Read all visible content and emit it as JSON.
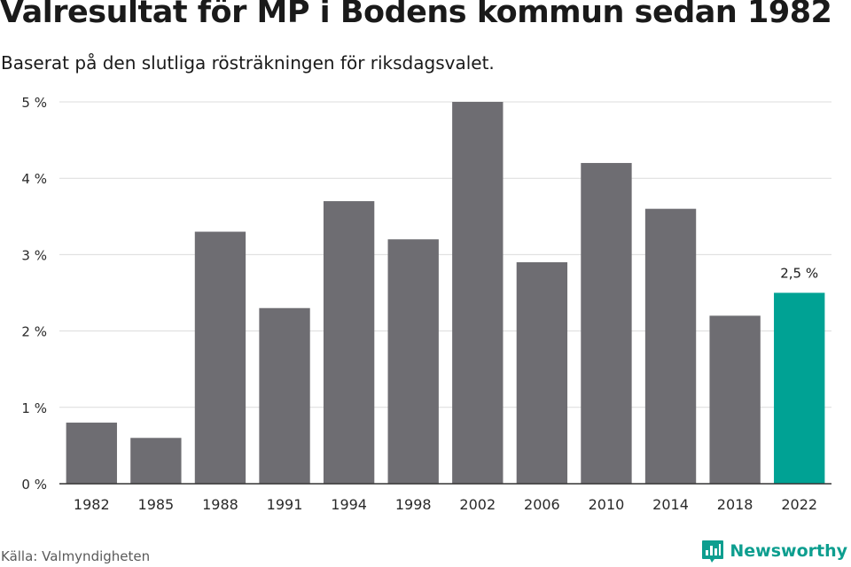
{
  "header": {
    "title": "Valresultat för MP i Bodens kommun sedan 1982",
    "subtitle": "Baserat på den slutliga rösträkningen för riksdagsvalet."
  },
  "footer": {
    "source": "Källa: Valmyndigheten",
    "brand_name": "Newsworthy",
    "brand_color": "#0d9e8f"
  },
  "chart_data": {
    "type": "bar",
    "categories": [
      "1982",
      "1985",
      "1988",
      "1991",
      "1994",
      "1998",
      "2002",
      "2006",
      "2010",
      "2014",
      "2018",
      "2022"
    ],
    "values": [
      0.8,
      0.6,
      3.3,
      2.3,
      3.7,
      3.2,
      5.0,
      2.9,
      4.2,
      3.6,
      2.2,
      2.5
    ],
    "unit": "%",
    "ylim": [
      0,
      5
    ],
    "yticks": [
      0,
      1,
      2,
      3,
      4,
      5
    ],
    "ytick_labels": [
      "0 %",
      "1 %",
      "2 %",
      "3 %",
      "4 %",
      "5 %"
    ],
    "grid": true,
    "bar_color": "#6e6d72",
    "highlight_color": "#00a294",
    "highlight_index": 11,
    "data_labels": [
      {
        "index": 11,
        "text": "2,5 %"
      }
    ]
  }
}
